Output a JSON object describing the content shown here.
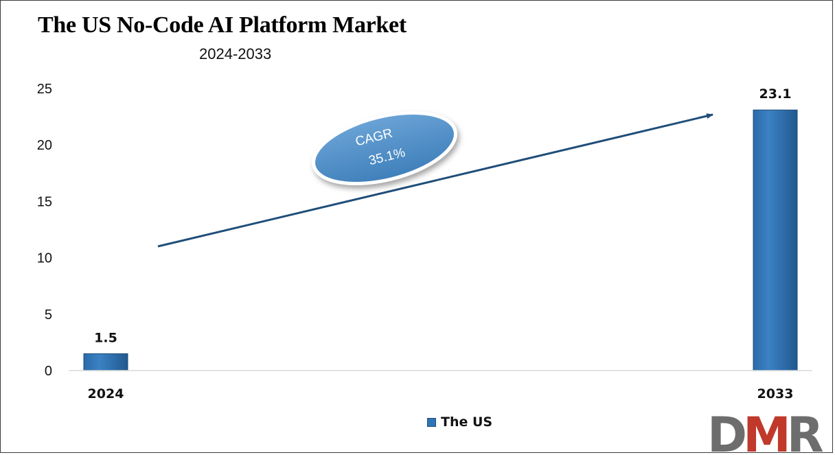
{
  "chart_data": {
    "type": "bar",
    "title": "The US No-Code AI Platform Market",
    "subtitle": "2024-2033",
    "categories": [
      "2024",
      "2033"
    ],
    "series": [
      {
        "name": "The US",
        "values": [
          1.5,
          23.1
        ],
        "color": "#2e75b6"
      }
    ],
    "data_labels": [
      "1.5",
      "23.1"
    ],
    "yticks": [
      "0",
      "5",
      "10",
      "15",
      "20",
      "25"
    ],
    "ylim": [
      0,
      25
    ],
    "xlabel": "",
    "ylabel": "",
    "grid": false,
    "legend": {
      "position": "bottom",
      "label": "The US"
    },
    "annotation": {
      "line1": "CAGR",
      "line2": "35.1%"
    }
  },
  "logo": {
    "text": "DMR",
    "colors": [
      "#6d6d6d",
      "#c0392b"
    ]
  }
}
